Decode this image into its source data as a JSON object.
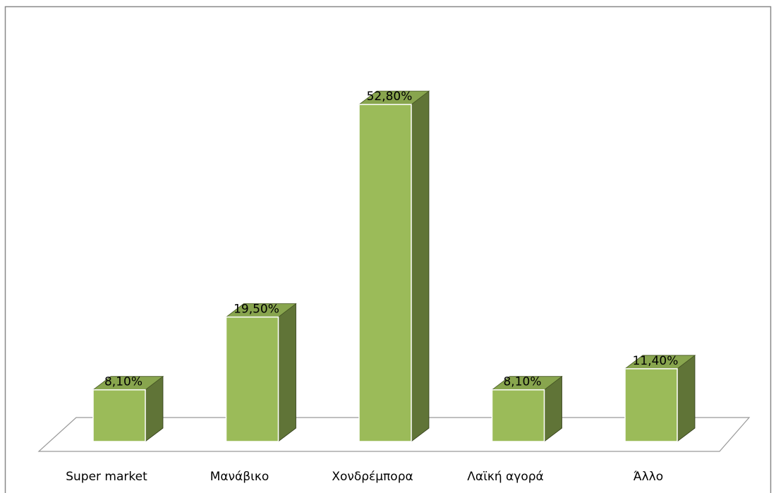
{
  "chart_data": {
    "type": "bar3d",
    "categories": [
      "Super market",
      "Μανάβικο",
      "Χονδρέμπορα",
      "Λαϊκή αγορά",
      "Άλλο"
    ],
    "values": [
      8.1,
      19.5,
      52.8,
      8.1,
      11.4
    ],
    "value_labels": [
      "8,10%",
      "19,50%",
      "52,80%",
      "8,10%",
      "11,40%"
    ],
    "color": "#9bbb59"
  }
}
